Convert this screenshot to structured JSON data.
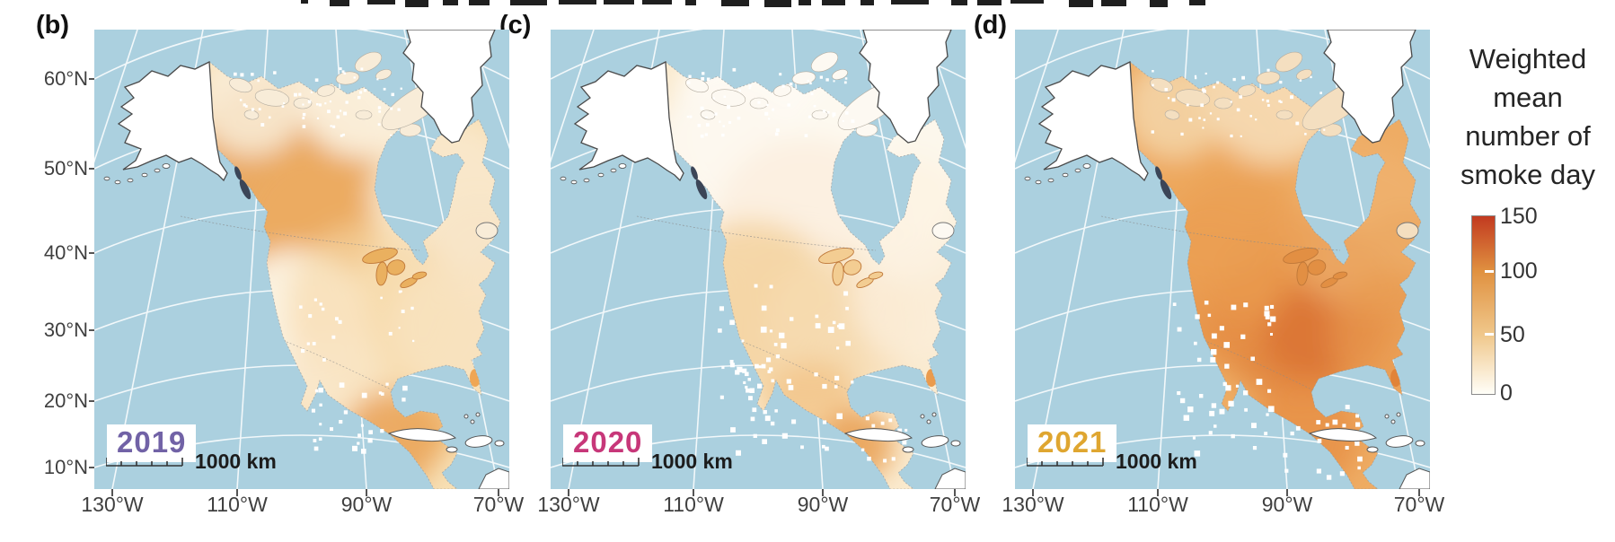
{
  "figure": {
    "description": "Three-panel map figure of North America showing weighted mean number of smoke days per year"
  },
  "panels": [
    {
      "label": "(b)",
      "year": "2019",
      "year_color": "#7162a6",
      "scalebar": "1000 km"
    },
    {
      "label": "(c)",
      "year": "2020",
      "year_color": "#c73779",
      "scalebar": "1000 km"
    },
    {
      "label": "(d)",
      "year": "2021",
      "year_color": "#dfa630",
      "scalebar": "1000 km"
    }
  ],
  "axes": {
    "y_ticks": [
      "60°N",
      "50°N",
      "40°N",
      "30°N",
      "20°N",
      "10°N"
    ],
    "x_ticks": [
      "130°W",
      "110°W",
      "90°W",
      "70°W"
    ]
  },
  "legend": {
    "title_lines": [
      "Weighted",
      "mean",
      "number of",
      "smoke day"
    ],
    "tick_labels": [
      "150",
      "100",
      "50",
      "0"
    ],
    "min": 0,
    "max": 150,
    "gradient": [
      "#c23a20",
      "#e09140",
      "#f0c88c",
      "#fffef8"
    ]
  },
  "map": {
    "ocean_color": "#abd0df",
    "no_data_land_color": "#ffffff"
  },
  "chart_data": {
    "type": "heatmap",
    "subtype": "geographic map series, Lambert conic projection of North America",
    "title": "Weighted mean number of smoke day",
    "colorbar": {
      "min": 0,
      "max": 150,
      "ticks": [
        150,
        100,
        50,
        0
      ]
    },
    "x_ticks": [
      "130°W",
      "110°W",
      "90°W",
      "70°W"
    ],
    "y_ticks": [
      "60°N",
      "50°N",
      "40°N",
      "30°N",
      "20°N",
      "10°N"
    ],
    "panels": [
      {
        "label": "(b)",
        "year": 2019,
        "summary": "Moderate values ~25-75; darkest orange over west-central Canada, near-zero over southwestern US, elevated over southern Mexico"
      },
      {
        "label": "(c)",
        "year": 2020,
        "summary": "Lowest year ~0-50; near-white across northern Canada, light-moderate orange over western/central US and Mexico"
      },
      {
        "label": "(d)",
        "year": 2021,
        "summary": "Highest year ~50-120; dark orange-red core over midwestern US, high values across most of US and southern Canada"
      }
    ]
  }
}
